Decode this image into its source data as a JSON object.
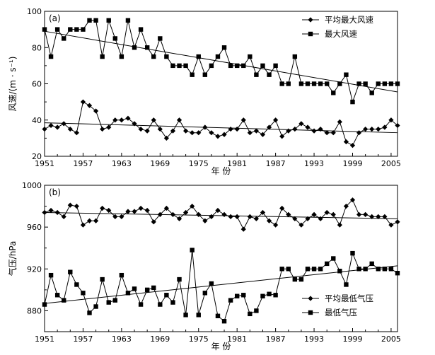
{
  "chart_data": [
    {
      "type": "line",
      "panel_label": "(a)",
      "title": "",
      "xlabel": "年 份",
      "ylabel": "风速/(m · s⁻¹)",
      "xlim": [
        1951,
        2006
      ],
      "ylim": [
        20,
        100
      ],
      "xticks": [
        "1951",
        "1957",
        "1963",
        "1969",
        "1975",
        "1981",
        "1987",
        "1993",
        "1999",
        "2005"
      ],
      "yticks": [
        "20",
        "40",
        "60",
        "80",
        "100"
      ],
      "legend_position": "top-right",
      "series": [
        {
          "name": "平均最大风速",
          "marker": "diamond",
          "x": [
            1951,
            1952,
            1953,
            1954,
            1955,
            1956,
            1957,
            1958,
            1959,
            1960,
            1961,
            1962,
            1963,
            1964,
            1965,
            1966,
            1967,
            1968,
            1969,
            1970,
            1971,
            1972,
            1973,
            1974,
            1975,
            1976,
            1977,
            1978,
            1979,
            1980,
            1981,
            1982,
            1983,
            1984,
            1985,
            1986,
            1987,
            1988,
            1989,
            1990,
            1991,
            1992,
            1993,
            1994,
            1995,
            1996,
            1997,
            1998,
            1999,
            2000,
            2001,
            2002,
            2003,
            2004,
            2005,
            2006
          ],
          "values": [
            35,
            37,
            36,
            38,
            35,
            33,
            50,
            48,
            45,
            35,
            36,
            40,
            40,
            41,
            38,
            35,
            34,
            40,
            35,
            30,
            34,
            40,
            34,
            33,
            33,
            36,
            33,
            31,
            32,
            35,
            35,
            40,
            33,
            34,
            32,
            36,
            40,
            31,
            34,
            35,
            38,
            36,
            34,
            35,
            33,
            33,
            39,
            28,
            26,
            33,
            35,
            35,
            35,
            36,
            40,
            37
          ],
          "trend": [
            38.5,
            33.0
          ]
        },
        {
          "name": "最大风速",
          "marker": "square",
          "x": [
            1951,
            1952,
            1953,
            1954,
            1955,
            1956,
            1957,
            1958,
            1959,
            1960,
            1961,
            1962,
            1963,
            1964,
            1965,
            1966,
            1967,
            1968,
            1969,
            1970,
            1971,
            1972,
            1973,
            1974,
            1975,
            1976,
            1977,
            1978,
            1979,
            1980,
            1981,
            1982,
            1983,
            1984,
            1985,
            1986,
            1987,
            1988,
            1989,
            1990,
            1991,
            1992,
            1993,
            1994,
            1995,
            1996,
            1997,
            1998,
            1999,
            2000,
            2001,
            2002,
            2003,
            2004,
            2005,
            2006
          ],
          "values": [
            90,
            75,
            90,
            85,
            90,
            90,
            90,
            95,
            95,
            75,
            95,
            85,
            75,
            95,
            80,
            90,
            80,
            75,
            85,
            75,
            70,
            70,
            70,
            65,
            75,
            65,
            70,
            75,
            80,
            70,
            70,
            70,
            75,
            65,
            70,
            65,
            70,
            60,
            60,
            75,
            60,
            60,
            60,
            60,
            60,
            55,
            60,
            65,
            50,
            60,
            60,
            55,
            60,
            60,
            60,
            60
          ],
          "trend": [
            89.0,
            55.5
          ]
        }
      ]
    },
    {
      "type": "line",
      "panel_label": "(b)",
      "title": "",
      "xlabel": "年 份",
      "ylabel": "气压/hPa",
      "xlim": [
        1951,
        2006
      ],
      "ylim": [
        860,
        1000
      ],
      "xticks": [
        "1951",
        "1957",
        "1963",
        "1969",
        "1975",
        "1981",
        "1987",
        "1993",
        "1999",
        "2005"
      ],
      "yticks": [
        "880",
        "920",
        "960",
        "1000"
      ],
      "legend_position": "bottom-right",
      "series": [
        {
          "name": "平均最低气压",
          "marker": "diamond",
          "x": [
            1951,
            1952,
            1953,
            1954,
            1955,
            1956,
            1957,
            1958,
            1959,
            1960,
            1961,
            1962,
            1963,
            1964,
            1965,
            1966,
            1967,
            1968,
            1969,
            1970,
            1971,
            1972,
            1973,
            1974,
            1975,
            1976,
            1977,
            1978,
            1979,
            1980,
            1981,
            1982,
            1983,
            1984,
            1985,
            1986,
            1987,
            1988,
            1989,
            1990,
            1991,
            1992,
            1993,
            1994,
            1995,
            1996,
            1997,
            1998,
            1999,
            2000,
            2001,
            2002,
            2003,
            2004,
            2005,
            2006
          ],
          "values": [
            974,
            976,
            974,
            970,
            981,
            980,
            962,
            966,
            966,
            978,
            976,
            970,
            970,
            975,
            975,
            978,
            976,
            965,
            972,
            978,
            972,
            968,
            974,
            980,
            972,
            966,
            970,
            976,
            972,
            970,
            970,
            958,
            970,
            968,
            974,
            966,
            962,
            978,
            972,
            968,
            962,
            968,
            972,
            968,
            974,
            972,
            962,
            980,
            986,
            972,
            972,
            970,
            970,
            970,
            962,
            965
          ],
          "trend": [
            974.0,
            968.0
          ]
        },
        {
          "name": "最低气压",
          "marker": "square",
          "x": [
            1951,
            1952,
            1953,
            1954,
            1955,
            1956,
            1957,
            1958,
            1959,
            1960,
            1961,
            1962,
            1963,
            1964,
            1965,
            1966,
            1967,
            1968,
            1969,
            1970,
            1971,
            1972,
            1973,
            1974,
            1975,
            1976,
            1977,
            1978,
            1979,
            1980,
            1981,
            1982,
            1983,
            1984,
            1985,
            1986,
            1987,
            1988,
            1989,
            1990,
            1991,
            1992,
            1993,
            1994,
            1995,
            1996,
            1997,
            1998,
            1999,
            2000,
            2001,
            2002,
            2003,
            2004,
            2005,
            2006
          ],
          "values": [
            886,
            914,
            895,
            890,
            917,
            905,
            897,
            878,
            884,
            910,
            888,
            890,
            914,
            897,
            901,
            886,
            900,
            902,
            886,
            895,
            888,
            910,
            876,
            938,
            876,
            897,
            906,
            875,
            870,
            890,
            894,
            895,
            877,
            880,
            894,
            896,
            895,
            920,
            920,
            910,
            910,
            920,
            920,
            920,
            925,
            930,
            918,
            905,
            935,
            920,
            920,
            925,
            920,
            920,
            920,
            916
          ],
          "trend": [
            887.0,
            923.0
          ]
        }
      ]
    }
  ]
}
